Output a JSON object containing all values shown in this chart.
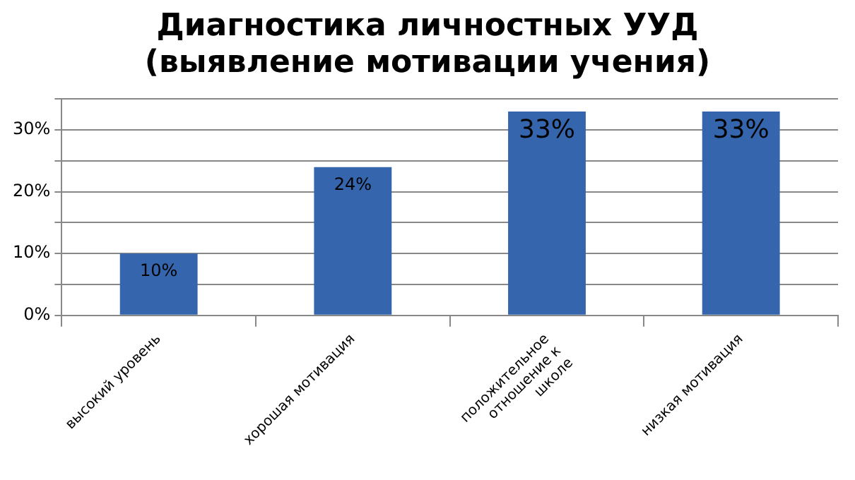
{
  "chart_data": {
    "type": "bar",
    "title": "Диагностика личностных УУД\n(выявление мотивации учения)",
    "categories": [
      "высокий уровень",
      "хорошая мотивация",
      "положительное отношение к школе",
      "низкая мотивация"
    ],
    "values": [
      10,
      24,
      33,
      33
    ],
    "color": "#3566ad",
    "value_labels": [
      "10%",
      "24%",
      "33%",
      "33%"
    ],
    "ylim": [
      0,
      35
    ],
    "yticks": [
      {
        "value": 0,
        "label": "0%"
      },
      {
        "value": 5,
        "label": null
      },
      {
        "value": 10,
        "label": "10%"
      },
      {
        "value": 15,
        "label": null
      },
      {
        "value": 20,
        "label": "20%"
      },
      {
        "value": 25,
        "label": null
      },
      {
        "value": 30,
        "label": "30%"
      },
      {
        "value": 35,
        "label": null
      }
    ],
    "grid": true,
    "legend": false
  }
}
